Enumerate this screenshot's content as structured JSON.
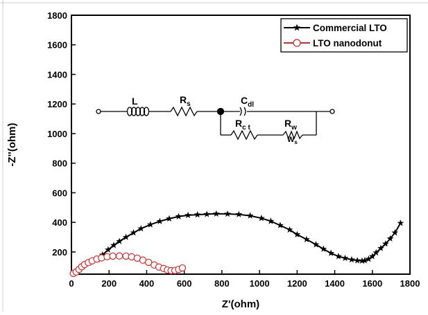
{
  "chart_data": {
    "type": "scatter",
    "xlabel": "Z'(ohm)",
    "ylabel": "-Z''(ohm)",
    "xlim": [
      0,
      1800
    ],
    "ylim": [
      50,
      1800
    ],
    "xticks": [
      0,
      200,
      400,
      600,
      800,
      1000,
      1200,
      1400,
      1600,
      1800
    ],
    "yticks": [
      200,
      400,
      600,
      800,
      1000,
      1200,
      1400,
      1600,
      1800
    ],
    "grid": false,
    "legend_position": "top-right",
    "series": [
      {
        "name": "Commercial LTO",
        "color": "#000000",
        "marker": "star",
        "points": [
          [
            140,
            150
          ],
          [
            165,
            180
          ],
          [
            195,
            215
          ],
          [
            225,
            245
          ],
          [
            255,
            272
          ],
          [
            290,
            300
          ],
          [
            330,
            330
          ],
          [
            370,
            358
          ],
          [
            420,
            385
          ],
          [
            470,
            407
          ],
          [
            520,
            425
          ],
          [
            570,
            440
          ],
          [
            620,
            448
          ],
          [
            670,
            452
          ],
          [
            720,
            455
          ],
          [
            770,
            458
          ],
          [
            830,
            457
          ],
          [
            890,
            454
          ],
          [
            950,
            445
          ],
          [
            1010,
            428
          ],
          [
            1060,
            408
          ],
          [
            1110,
            380
          ],
          [
            1160,
            350
          ],
          [
            1200,
            318
          ],
          [
            1250,
            285
          ],
          [
            1300,
            250
          ],
          [
            1340,
            220
          ],
          [
            1380,
            192
          ],
          [
            1420,
            170
          ],
          [
            1455,
            158
          ],
          [
            1490,
            148
          ],
          [
            1520,
            142
          ],
          [
            1545,
            140
          ],
          [
            1560,
            142
          ],
          [
            1580,
            152
          ],
          [
            1600,
            170
          ],
          [
            1620,
            195
          ],
          [
            1645,
            225
          ],
          [
            1670,
            255
          ],
          [
            1695,
            290
          ],
          [
            1720,
            330
          ],
          [
            1750,
            395
          ]
        ]
      },
      {
        "name": "LTO nanodonut",
        "color": "#d42a2a",
        "marker": "circle",
        "points": [
          [
            10,
            55
          ],
          [
            25,
            65
          ],
          [
            40,
            82
          ],
          [
            55,
            100
          ],
          [
            70,
            115
          ],
          [
            90,
            128
          ],
          [
            110,
            140
          ],
          [
            135,
            152
          ],
          [
            160,
            160
          ],
          [
            190,
            168
          ],
          [
            220,
            172
          ],
          [
            255,
            173
          ],
          [
            290,
            172
          ],
          [
            320,
            167
          ],
          [
            350,
            158
          ],
          [
            380,
            145
          ],
          [
            410,
            130
          ],
          [
            440,
            112
          ],
          [
            465,
            98
          ],
          [
            490,
            88
          ],
          [
            510,
            78
          ],
          [
            530,
            74
          ],
          [
            550,
            75
          ],
          [
            570,
            82
          ],
          [
            590,
            92
          ]
        ]
      }
    ],
    "inset_circuit": {
      "labels": {
        "L": "L",
        "Rs_main": "R",
        "Rs_sub": "s",
        "Cdl_main": "C",
        "Cdl_sub": "dl",
        "Rct_main": "R",
        "Rct_sub": "c t",
        "Rw_main": "R",
        "Rw_sub": "w",
        "W_main": "W",
        "W_sub": "s"
      }
    }
  }
}
